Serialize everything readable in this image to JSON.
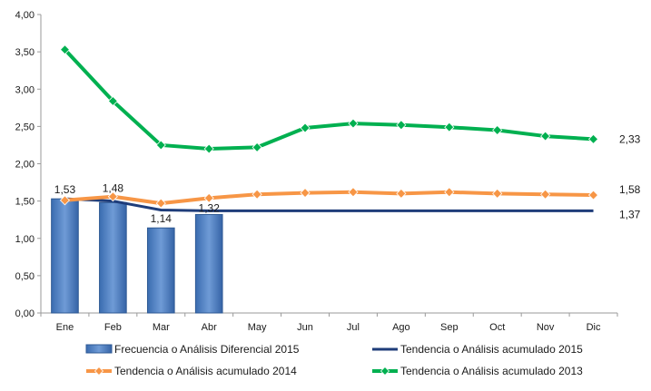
{
  "chart_data": {
    "type": "bar+line",
    "categories": [
      "Ene",
      "Feb",
      "Mar",
      "Abr",
      "May",
      "Jun",
      "Jul",
      "Ago",
      "Sep",
      "Oct",
      "Nov",
      "Dic"
    ],
    "ylim": [
      0,
      4.0
    ],
    "yticks": [
      "0,00",
      "0,50",
      "1,00",
      "1,50",
      "2,00",
      "2,50",
      "3,00",
      "3,50",
      "4,00"
    ],
    "grid": false,
    "legend_position": "bottom",
    "series": [
      {
        "name": "Frecuencia o Análisis Diferencial 2015",
        "kind": "bar",
        "color": "#4f81bd",
        "values": [
          1.53,
          1.48,
          1.14,
          1.32,
          null,
          null,
          null,
          null,
          null,
          null,
          null,
          null
        ],
        "labels": [
          "1,53",
          "1,48",
          "1,14",
          "1,32"
        ]
      },
      {
        "name": "Tendencia o Análisis acumulado 2015",
        "kind": "line",
        "color": "#1f3d7a",
        "marker": "none",
        "values": [
          1.53,
          1.5,
          1.38,
          1.37,
          1.37,
          1.37,
          1.37,
          1.37,
          1.37,
          1.37,
          1.37,
          1.37
        ],
        "end_label": "1,37"
      },
      {
        "name": "Tendencia o Análisis acumulado 2014",
        "kind": "line",
        "color": "#f79646",
        "marker": "diamond",
        "values": [
          1.51,
          1.56,
          1.47,
          1.54,
          1.59,
          1.61,
          1.62,
          1.6,
          1.62,
          1.6,
          1.59,
          1.58
        ],
        "end_label": "1,58"
      },
      {
        "name": "Tendencia o Análisis acumulado 2013",
        "kind": "line",
        "color": "#00b050",
        "marker": "diamond",
        "values": [
          3.53,
          2.84,
          2.25,
          2.2,
          2.22,
          2.48,
          2.54,
          2.52,
          2.49,
          2.45,
          2.37,
          2.33
        ],
        "end_label": "2,33"
      }
    ]
  }
}
